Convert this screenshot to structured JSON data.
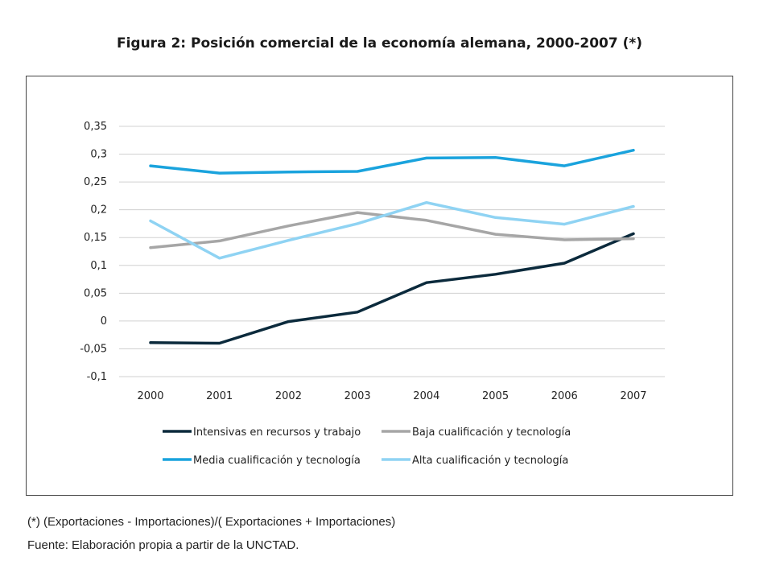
{
  "title": "Figura 2: Posición comercial de la economía alemana, 2000-2007 (*)",
  "notes": {
    "formula": "(*) (Exportaciones - Importaciones)/( Exportaciones + Importaciones)",
    "source": "Fuente: Elaboración propia a partir de la UNCTAD."
  },
  "chart_data": {
    "type": "line",
    "title": "Figura 2: Posición comercial de la economía alemana, 2000-2007 (*)",
    "xlabel": "",
    "ylabel": "",
    "categories": [
      "2000",
      "2001",
      "2002",
      "2003",
      "2004",
      "2005",
      "2006",
      "2007"
    ],
    "ylim": [
      -0.1,
      0.35
    ],
    "yticks": [
      -0.1,
      -0.05,
      0,
      0.05,
      0.1,
      0.15,
      0.2,
      0.25,
      0.3,
      0.35
    ],
    "ytick_labels": [
      "-0,1",
      "-0,05",
      "0",
      "0,05",
      "0,1",
      "0,15",
      "0,2",
      "0,25",
      "0,3",
      "0,35"
    ],
    "grid": true,
    "legend_position": "bottom",
    "series": [
      {
        "name": "Intensivas en recursos y trabajo",
        "color": "#0b2a3c",
        "values": [
          -0.039,
          -0.04,
          -0.001,
          0.016,
          0.069,
          0.084,
          0.104,
          0.157
        ]
      },
      {
        "name": "Baja cualificación y tecnología",
        "color": "#a6a6a6",
        "values": [
          0.132,
          0.144,
          0.171,
          0.195,
          0.181,
          0.156,
          0.146,
          0.148
        ]
      },
      {
        "name": "Media cualificación y tecnología",
        "color": "#1aa3dd",
        "values": [
          0.279,
          0.266,
          0.268,
          0.269,
          0.293,
          0.294,
          0.279,
          0.307
        ]
      },
      {
        "name": "Alta cualificación y tecnología",
        "color": "#8fd3f3",
        "values": [
          0.18,
          0.113,
          0.145,
          0.175,
          0.213,
          0.186,
          0.174,
          0.206
        ]
      }
    ]
  }
}
